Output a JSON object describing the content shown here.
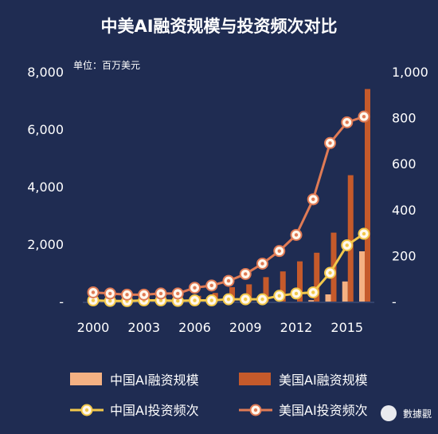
{
  "chart_data": {
    "type": "bar+line",
    "title": "中美AI融资规模与投资频次对比",
    "unit_label": "单位：百万美元",
    "x": [
      2000,
      2001,
      2002,
      2003,
      2004,
      2005,
      2006,
      2007,
      2008,
      2009,
      2010,
      2011,
      2012,
      2013,
      2014,
      2015,
      2016
    ],
    "x_tick_labels": [
      "2000",
      "2003",
      "2006",
      "2009",
      "2012",
      "2015"
    ],
    "y_left": {
      "range": [
        0,
        8000
      ],
      "ticks": [
        0,
        2000,
        4000,
        6000,
        8000
      ],
      "tick_labels": [
        "-",
        "2,000",
        "4,000",
        "6,000",
        "8,000"
      ]
    },
    "y_right": {
      "range": [
        0,
        1000
      ],
      "ticks": [
        0,
        200,
        400,
        600,
        800,
        1000
      ],
      "tick_labels": [
        "-",
        "200",
        "400",
        "600",
        "800",
        "1,000"
      ]
    },
    "bar_series": [
      {
        "name": "中国AI融资规模",
        "axis": "left",
        "color": "#f4b183",
        "values": [
          0,
          0,
          0,
          0,
          0,
          0,
          0,
          0,
          0,
          0,
          0,
          0,
          0,
          50,
          250,
          700,
          1750
        ]
      },
      {
        "name": "美国AI融资规模",
        "axis": "left",
        "color": "#c55a2b",
        "values": [
          50,
          40,
          40,
          50,
          50,
          80,
          200,
          300,
          500,
          600,
          850,
          1050,
          1400,
          1700,
          2400,
          4400,
          7400
        ]
      }
    ],
    "line_series": [
      {
        "name": "中国AI投资频次",
        "axis": "right",
        "color": "#f2c84b",
        "values": [
          5,
          3,
          2,
          5,
          5,
          3,
          5,
          5,
          10,
          10,
          10,
          25,
          35,
          40,
          125,
          245,
          295
        ]
      },
      {
        "name": "美国AI投资频次",
        "axis": "right",
        "color": "#e07b55",
        "values": [
          40,
          35,
          30,
          30,
          35,
          35,
          60,
          70,
          90,
          120,
          165,
          220,
          290,
          445,
          690,
          780,
          805
        ]
      }
    ]
  },
  "watermark": "數據觀"
}
